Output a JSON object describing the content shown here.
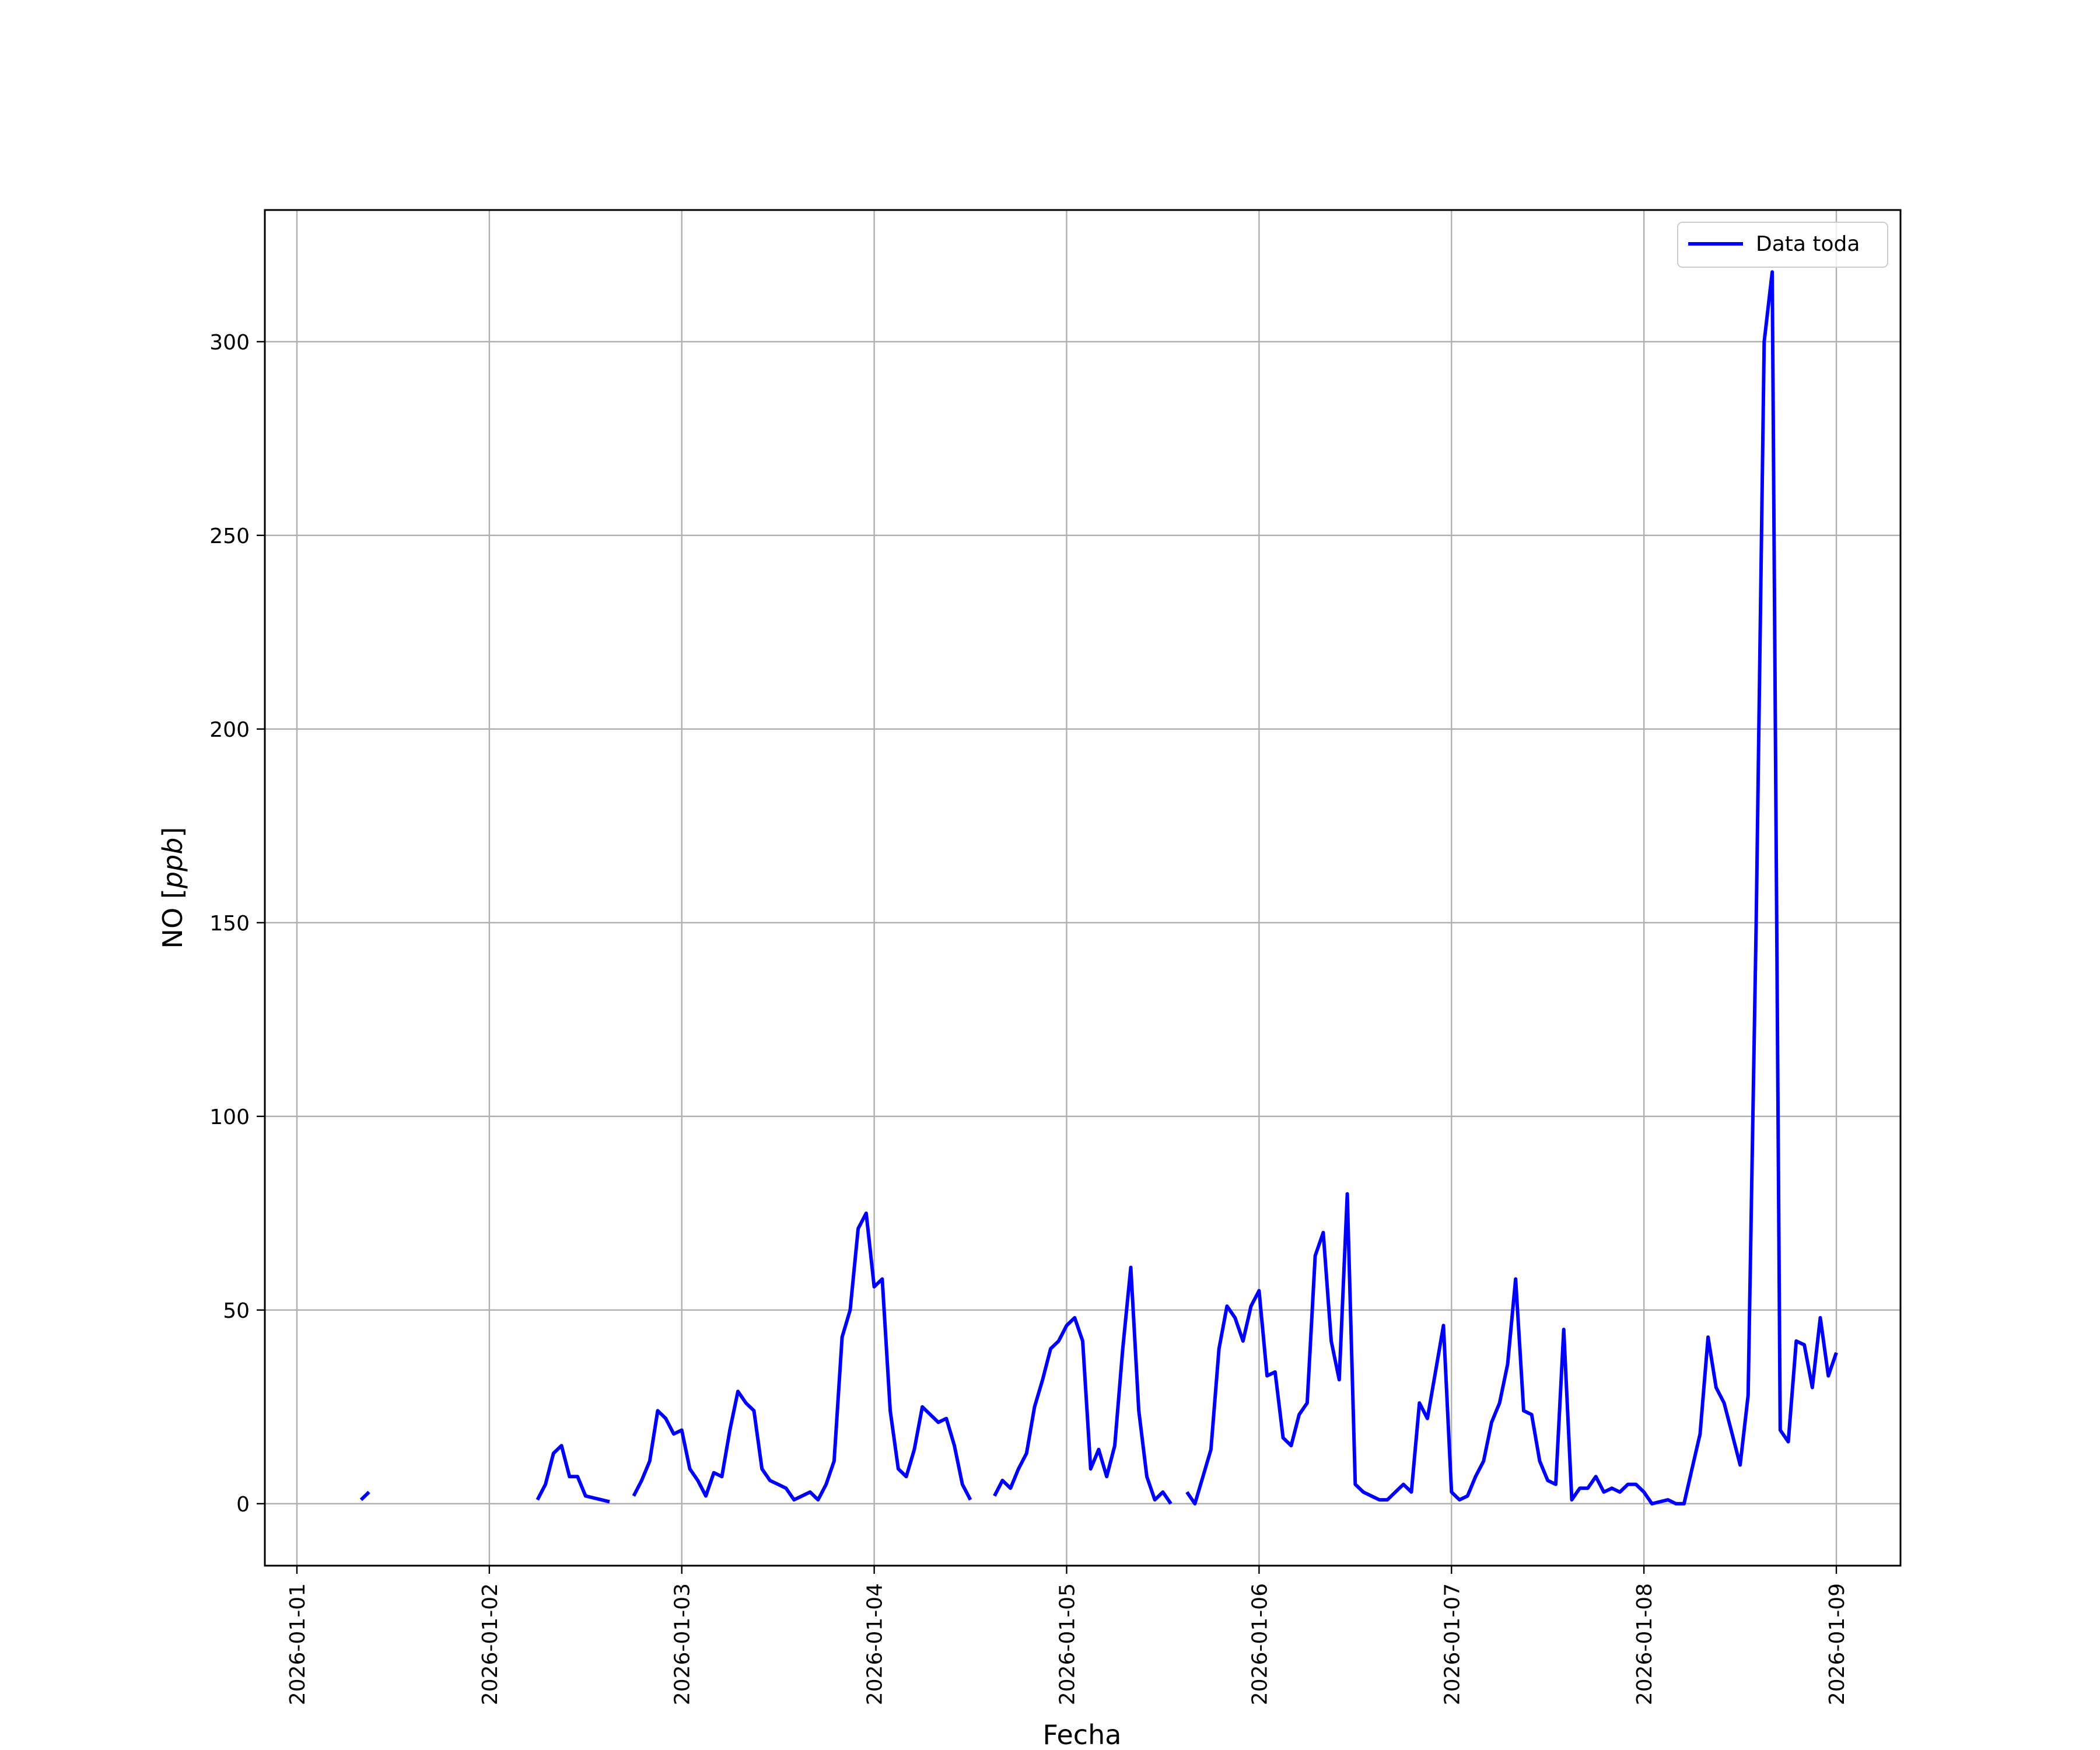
{
  "chart_data": {
    "type": "line",
    "xlabel": "Fecha",
    "ylabel": {
      "prefix": "NO ",
      "bracket_open": "[",
      "unit": "ppb",
      "bracket_close": "]"
    },
    "x_range": [
      "2026-01-00T20:00",
      "2026-01-09T08:00"
    ],
    "ylim": [
      -16,
      334
    ],
    "x_ticks": [
      "2026-01-01",
      "2026-01-02",
      "2026-01-03",
      "2026-01-04",
      "2026-01-05",
      "2026-01-06",
      "2026-01-07",
      "2026-01-08",
      "2026-01-09"
    ],
    "y_ticks": [
      0,
      50,
      100,
      150,
      200,
      250,
      300
    ],
    "grid": true,
    "legend_position": "top-right",
    "series": [
      {
        "name": "Data toda",
        "color": "#0000ff",
        "segments": [
          [
            [
              "2026-01-01T08:00",
              1
            ],
            [
              "2026-01-01T09:00",
              3
            ]
          ],
          [
            [
              "2026-01-02T06:00",
              1
            ],
            [
              "2026-01-02T07:00",
              5
            ],
            [
              "2026-01-02T08:00",
              13
            ],
            [
              "2026-01-02T09:00",
              15
            ],
            [
              "2026-01-02T10:00",
              7
            ],
            [
              "2026-01-02T11:00",
              7
            ],
            [
              "2026-01-02T12:00",
              2
            ],
            [
              "2026-01-02T15:00",
              0.5
            ]
          ],
          [
            [
              "2026-01-02T18:00",
              2
            ],
            [
              "2026-01-02T19:00",
              6
            ],
            [
              "2026-01-02T20:00",
              11
            ],
            [
              "2026-01-02T21:00",
              24
            ],
            [
              "2026-01-02T22:00",
              22
            ],
            [
              "2026-01-02T23:00",
              18
            ],
            [
              "2026-01-03T00:00",
              19
            ],
            [
              "2026-01-03T01:00",
              9
            ],
            [
              "2026-01-03T02:00",
              6
            ],
            [
              "2026-01-03T03:00",
              2
            ],
            [
              "2026-01-03T04:00",
              8
            ],
            [
              "2026-01-03T05:00",
              7
            ],
            [
              "2026-01-03T06:00",
              19
            ],
            [
              "2026-01-03T07:00",
              29
            ],
            [
              "2026-01-03T08:00",
              26
            ],
            [
              "2026-01-03T09:00",
              24
            ],
            [
              "2026-01-03T10:00",
              9
            ],
            [
              "2026-01-03T11:00",
              6
            ],
            [
              "2026-01-03T12:00",
              5
            ],
            [
              "2026-01-03T13:00",
              4
            ],
            [
              "2026-01-03T14:00",
              1
            ],
            [
              "2026-01-03T15:00",
              2
            ],
            [
              "2026-01-03T16:00",
              3
            ],
            [
              "2026-01-03T17:00",
              1
            ],
            [
              "2026-01-03T18:00",
              5
            ],
            [
              "2026-01-03T19:00",
              11
            ],
            [
              "2026-01-03T20:00",
              43
            ],
            [
              "2026-01-03T21:00",
              50
            ],
            [
              "2026-01-03T22:00",
              71
            ],
            [
              "2026-01-03T23:00",
              75
            ],
            [
              "2026-01-04T00:00",
              56
            ],
            [
              "2026-01-04T01:00",
              58
            ],
            [
              "2026-01-04T02:00",
              24
            ],
            [
              "2026-01-04T03:00",
              9
            ],
            [
              "2026-01-04T04:00",
              7
            ],
            [
              "2026-01-04T05:00",
              14
            ],
            [
              "2026-01-04T06:00",
              25
            ],
            [
              "2026-01-04T07:00",
              23
            ],
            [
              "2026-01-04T08:00",
              21
            ],
            [
              "2026-01-04T09:00",
              22
            ],
            [
              "2026-01-04T10:00",
              15
            ],
            [
              "2026-01-04T11:00",
              5
            ],
            [
              "2026-01-04T12:00",
              1
            ]
          ],
          [
            [
              "2026-01-04T15:00",
              2
            ],
            [
              "2026-01-04T16:00",
              6
            ],
            [
              "2026-01-04T17:00",
              4
            ],
            [
              "2026-01-04T18:00",
              9
            ],
            [
              "2026-01-04T19:00",
              13
            ],
            [
              "2026-01-04T20:00",
              25
            ],
            [
              "2026-01-04T21:00",
              32
            ],
            [
              "2026-01-04T22:00",
              40
            ],
            [
              "2026-01-04T23:00",
              42
            ],
            [
              "2026-01-05T00:00",
              46
            ],
            [
              "2026-01-05T01:00",
              48
            ],
            [
              "2026-01-05T02:00",
              42
            ],
            [
              "2026-01-05T03:00",
              9
            ],
            [
              "2026-01-05T04:00",
              14
            ],
            [
              "2026-01-05T05:00",
              7
            ],
            [
              "2026-01-05T06:00",
              15
            ],
            [
              "2026-01-05T07:00",
              40
            ],
            [
              "2026-01-05T08:00",
              61
            ],
            [
              "2026-01-05T09:00",
              24
            ],
            [
              "2026-01-05T10:00",
              7
            ],
            [
              "2026-01-05T11:00",
              1
            ],
            [
              "2026-01-05T12:00",
              3
            ],
            [
              "2026-01-05T13:00",
              0
            ]
          ],
          [
            [
              "2026-01-05T15:00",
              3
            ],
            [
              "2026-01-05T16:00",
              0
            ],
            [
              "2026-01-05T17:00",
              7
            ],
            [
              "2026-01-05T18:00",
              14
            ],
            [
              "2026-01-05T19:00",
              40
            ],
            [
              "2026-01-05T20:00",
              51
            ],
            [
              "2026-01-05T21:00",
              48
            ],
            [
              "2026-01-05T22:00",
              42
            ],
            [
              "2026-01-05T23:00",
              51
            ],
            [
              "2026-01-06T00:00",
              55
            ],
            [
              "2026-01-06T01:00",
              33
            ],
            [
              "2026-01-06T02:00",
              34
            ],
            [
              "2026-01-06T03:00",
              17
            ],
            [
              "2026-01-06T04:00",
              15
            ],
            [
              "2026-01-06T05:00",
              23
            ],
            [
              "2026-01-06T06:00",
              26
            ],
            [
              "2026-01-06T07:00",
              64
            ],
            [
              "2026-01-06T08:00",
              70
            ],
            [
              "2026-01-06T09:00",
              42
            ],
            [
              "2026-01-06T10:00",
              32
            ],
            [
              "2026-01-06T11:00",
              80
            ],
            [
              "2026-01-06T12:00",
              5
            ],
            [
              "2026-01-06T13:00",
              3
            ],
            [
              "2026-01-06T14:00",
              2
            ],
            [
              "2026-01-06T15:00",
              1
            ],
            [
              "2026-01-06T16:00",
              1
            ],
            [
              "2026-01-06T17:00",
              3
            ],
            [
              "2026-01-06T18:00",
              5
            ],
            [
              "2026-01-06T19:00",
              3
            ],
            [
              "2026-01-06T20:00",
              26
            ],
            [
              "2026-01-06T21:00",
              22
            ],
            [
              "2026-01-06T22:00",
              34
            ],
            [
              "2026-01-06T23:00",
              46
            ],
            [
              "2026-01-07T00:00",
              3
            ],
            [
              "2026-01-07T01:00",
              1
            ],
            [
              "2026-01-07T02:00",
              2
            ],
            [
              "2026-01-07T03:00",
              7
            ],
            [
              "2026-01-07T04:00",
              11
            ],
            [
              "2026-01-07T05:00",
              21
            ],
            [
              "2026-01-07T06:00",
              26
            ],
            [
              "2026-01-07T07:00",
              36
            ],
            [
              "2026-01-07T08:00",
              58
            ],
            [
              "2026-01-07T09:00",
              24
            ],
            [
              "2026-01-07T10:00",
              23
            ],
            [
              "2026-01-07T11:00",
              11
            ],
            [
              "2026-01-07T12:00",
              6
            ],
            [
              "2026-01-07T13:00",
              5
            ],
            [
              "2026-01-07T14:00",
              45
            ],
            [
              "2026-01-07T15:00",
              1
            ],
            [
              "2026-01-07T16:00",
              4
            ],
            [
              "2026-01-07T17:00",
              4
            ],
            [
              "2026-01-07T18:00",
              7
            ],
            [
              "2026-01-07T19:00",
              3
            ],
            [
              "2026-01-07T20:00",
              4
            ],
            [
              "2026-01-07T21:00",
              3
            ],
            [
              "2026-01-07T22:00",
              5
            ],
            [
              "2026-01-07T23:00",
              5
            ],
            [
              "2026-01-08T00:00",
              3
            ],
            [
              "2026-01-08T01:00",
              0
            ],
            [
              "2026-01-08T02:00",
              0.5
            ],
            [
              "2026-01-08T03:00",
              1
            ],
            [
              "2026-01-08T04:00",
              0
            ],
            [
              "2026-01-08T05:00",
              0
            ],
            [
              "2026-01-08T06:00",
              9
            ],
            [
              "2026-01-08T07:00",
              18
            ],
            [
              "2026-01-08T08:00",
              43
            ],
            [
              "2026-01-08T09:00",
              30
            ],
            [
              "2026-01-08T10:00",
              26
            ],
            [
              "2026-01-08T11:00",
              18
            ],
            [
              "2026-01-08T12:00",
              10
            ],
            [
              "2026-01-08T13:00",
              28
            ],
            [
              "2026-01-08T14:00",
              150
            ],
            [
              "2026-01-08T15:00",
              300
            ],
            [
              "2026-01-08T16:00",
              318
            ],
            [
              "2026-01-08T17:00",
              19
            ],
            [
              "2026-01-08T18:00",
              16
            ],
            [
              "2026-01-08T19:00",
              42
            ],
            [
              "2026-01-08T20:00",
              41
            ],
            [
              "2026-01-08T21:00",
              30
            ],
            [
              "2026-01-08T22:00",
              48
            ],
            [
              "2026-01-08T23:00",
              33
            ],
            [
              "2026-01-09T00:00",
              39
            ]
          ]
        ]
      }
    ]
  }
}
